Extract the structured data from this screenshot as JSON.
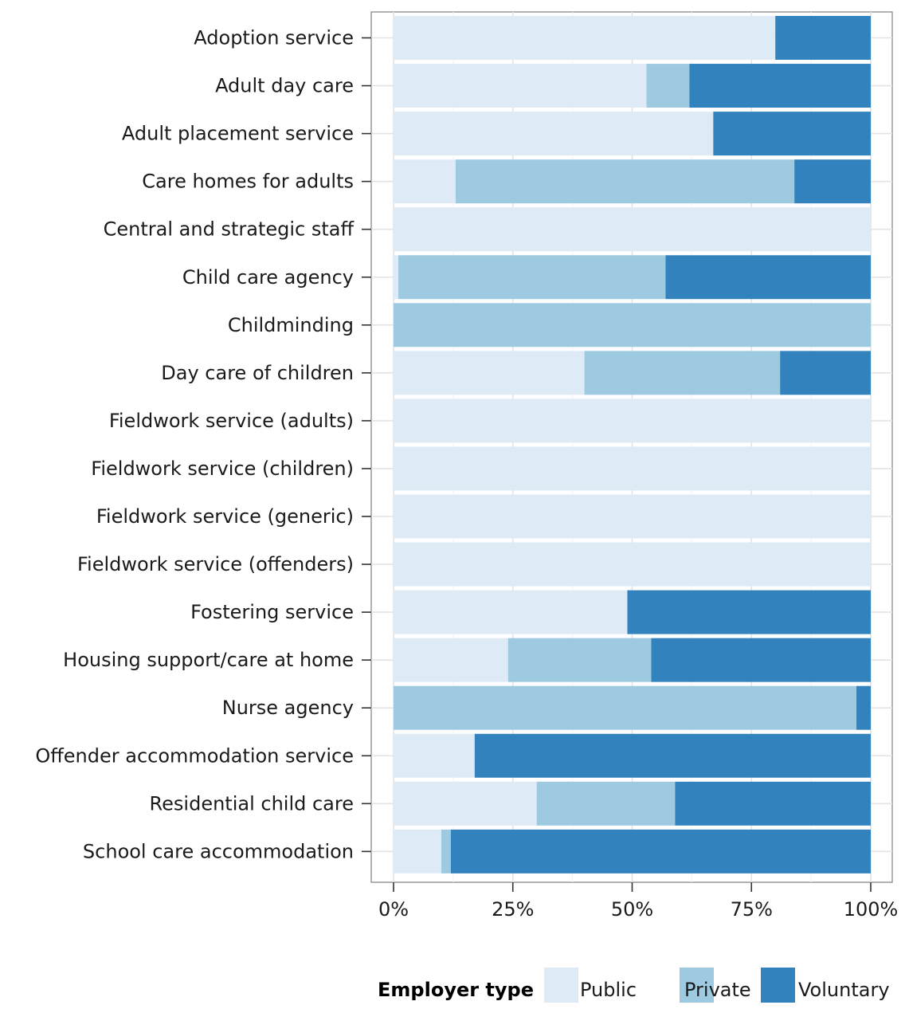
{
  "chart_data": {
    "type": "bar",
    "orientation": "horizontal",
    "stacked": true,
    "percent": true,
    "categories": [
      "Adoption service",
      "Adult day care",
      "Adult placement service",
      "Care homes for adults",
      "Central and strategic staff",
      "Child care agency",
      "Childminding",
      "Day care of children",
      "Fieldwork service (adults)",
      "Fieldwork service (children)",
      "Fieldwork service (generic)",
      "Fieldwork service (offenders)",
      "Fostering service",
      "Housing support/care at home",
      "Nurse agency",
      "Offender accommodation service",
      "Residential child care",
      "School care accommodation"
    ],
    "series": [
      {
        "name": "Public",
        "color": "#deebf7",
        "values": [
          80,
          53,
          67,
          13,
          100,
          1,
          0,
          40,
          100,
          100,
          100,
          100,
          49,
          24,
          0,
          17,
          30,
          10
        ]
      },
      {
        "name": "Private",
        "color": "#9ecae1",
        "values": [
          0,
          9,
          0,
          71,
          0,
          56,
          100,
          41,
          0,
          0,
          0,
          0,
          0,
          30,
          97,
          0,
          29,
          2
        ]
      },
      {
        "name": "Voluntary",
        "color": "#3182bd",
        "values": [
          20,
          38,
          33,
          16,
          0,
          43,
          0,
          19,
          0,
          0,
          0,
          0,
          51,
          46,
          3,
          83,
          41,
          88
        ]
      }
    ],
    "xticks": [
      "0%",
      "25%",
      "50%",
      "75%",
      "100%"
    ],
    "xlim": [
      0,
      100
    ],
    "xlabel": "",
    "ylabel": "",
    "grid": true,
    "legend": {
      "title": "Employer type",
      "position": "bottom"
    }
  }
}
